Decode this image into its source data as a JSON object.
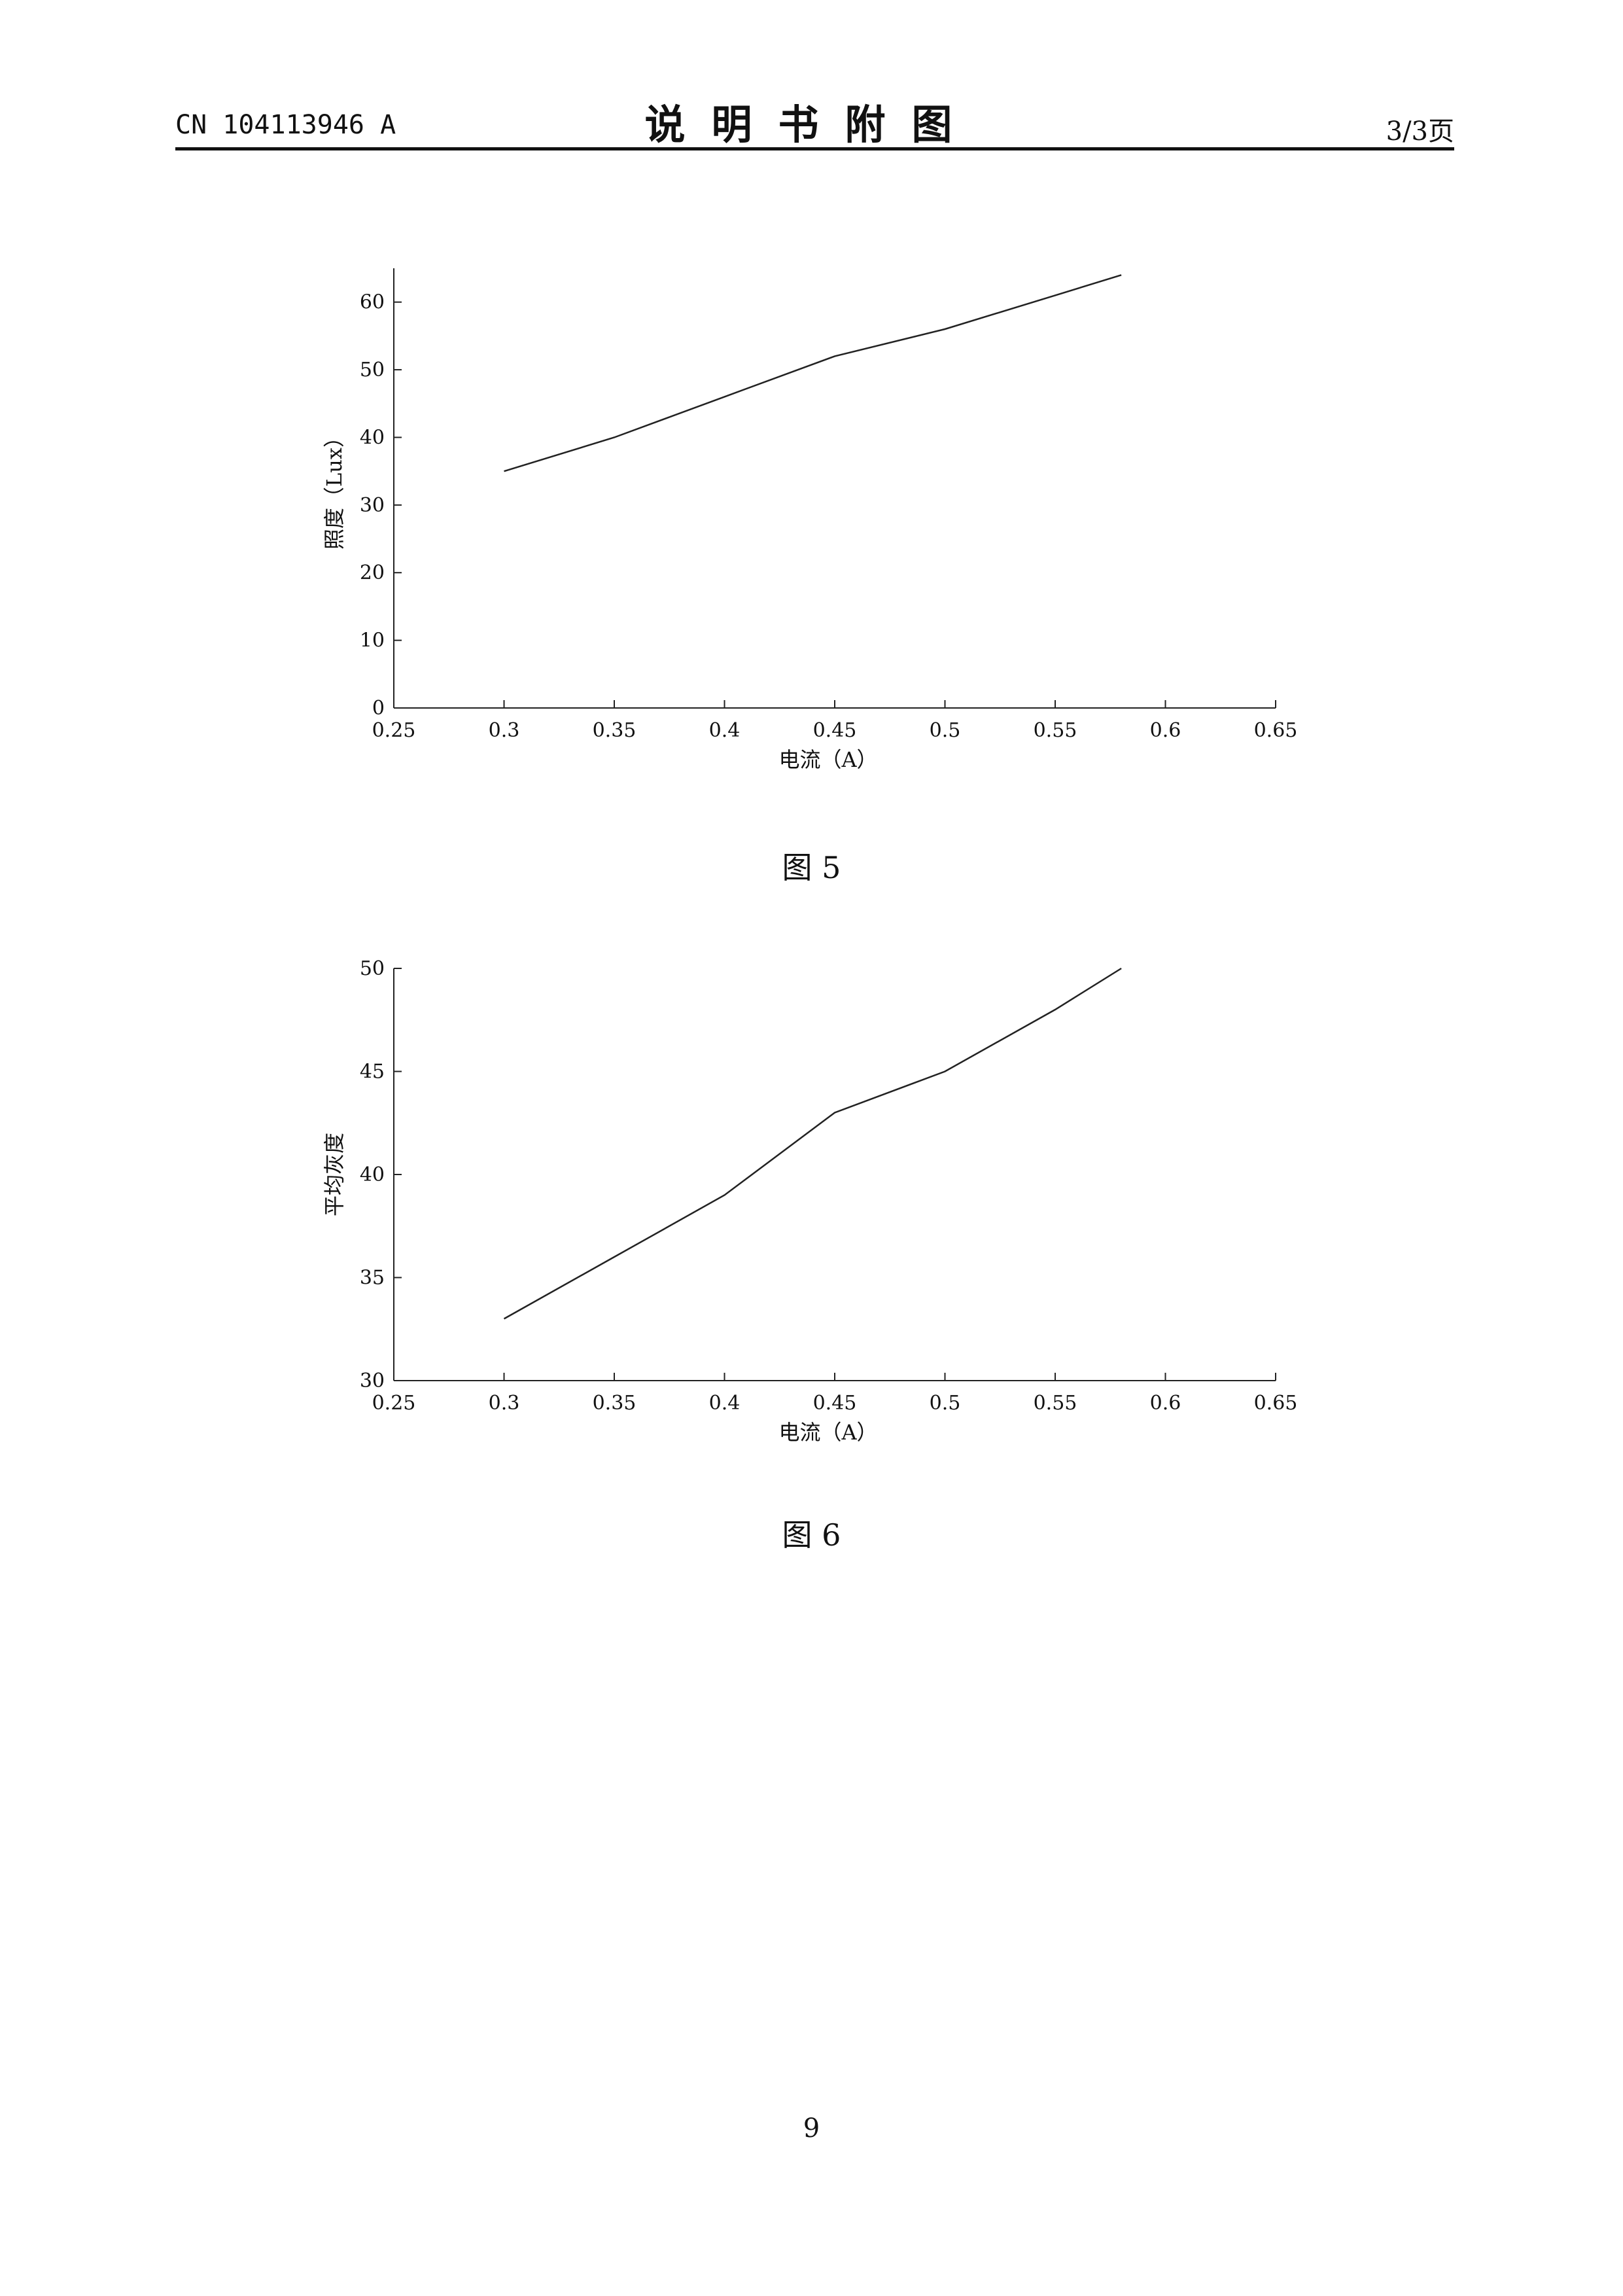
{
  "header": {
    "doc_id": "CN 104113946 A",
    "title": "说明书附图",
    "page_of": "3/3页"
  },
  "figures": [
    {
      "caption": "图 5"
    },
    {
      "caption": "图 6"
    }
  ],
  "page_number": "9",
  "chart_data": [
    {
      "type": "line",
      "xlabel": "电流（A）",
      "ylabel": "照度（Lux）",
      "xlim": [
        0.25,
        0.65
      ],
      "ylim": [
        0,
        65
      ],
      "xticks": [
        "0.25",
        "0.3",
        "0.35",
        "0.4",
        "0.45",
        "0.5",
        "0.55",
        "0.6",
        "0.65"
      ],
      "yticks": [
        "0",
        "10",
        "20",
        "30",
        "40",
        "50",
        "60"
      ],
      "grid": false,
      "series": [
        {
          "x": [
            0.3,
            0.35,
            0.4,
            0.45,
            0.5,
            0.55,
            0.58
          ],
          "values": [
            35,
            40,
            46,
            52,
            56,
            61,
            64
          ]
        }
      ]
    },
    {
      "type": "line",
      "xlabel": "电流（A）",
      "ylabel": "平均灰度",
      "xlim": [
        0.25,
        0.65
      ],
      "ylim": [
        30,
        50
      ],
      "xticks": [
        "0.25",
        "0.3",
        "0.35",
        "0.4",
        "0.45",
        "0.5",
        "0.55",
        "0.6",
        "0.65"
      ],
      "yticks": [
        "30",
        "35",
        "40",
        "45",
        "50"
      ],
      "grid": false,
      "series": [
        {
          "x": [
            0.3,
            0.35,
            0.4,
            0.45,
            0.5,
            0.55,
            0.58
          ],
          "values": [
            33,
            36,
            39,
            43,
            45,
            48,
            50
          ]
        }
      ]
    }
  ]
}
